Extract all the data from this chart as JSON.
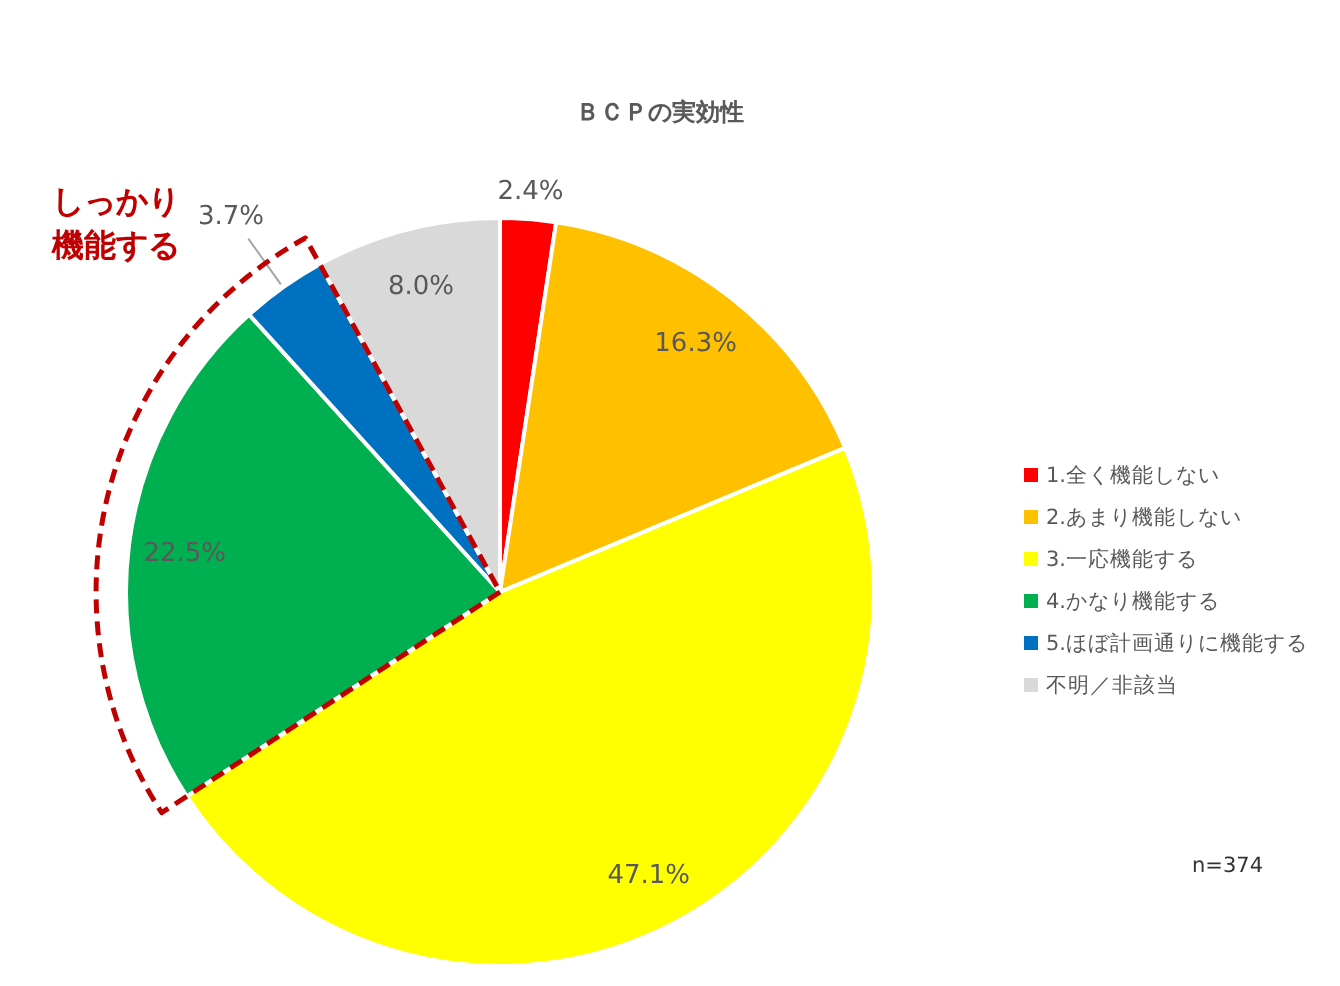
{
  "chart_data": {
    "type": "pie",
    "title": "ＢＣＰの実効性",
    "categories": [
      "1.全く機能しない",
      "2.あまり機能しない",
      "3.一応機能する",
      "4.かなり機能する",
      "5.ほぼ計画通りに機能する",
      "不明／非該当"
    ],
    "values": [
      2.4,
      16.3,
      47.1,
      22.5,
      3.7,
      8.0
    ],
    "colors": [
      "#ff0000",
      "#ffc000",
      "#ffff00",
      "#00b050",
      "#0070c0",
      "#d9d9d9"
    ],
    "value_labels": [
      "2.4%",
      "16.3%",
      "47.1%",
      "22.5%",
      "3.7%",
      "8.0%"
    ],
    "legend": "right",
    "annotations": [
      "しっかり",
      "機能する",
      "n=374"
    ]
  }
}
